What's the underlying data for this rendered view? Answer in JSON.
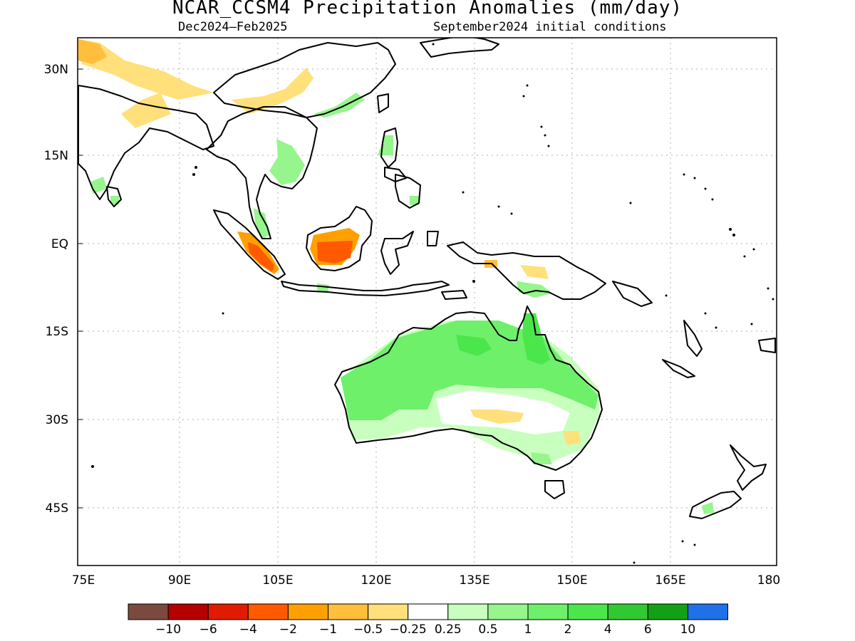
{
  "header": {
    "title": "NCAR_CCSM4 Precipitation Anomalies (mm/day)",
    "period": "Dec2024–Feb2025",
    "init": "September2024 initial conditions"
  },
  "axes": {
    "lat_labels": [
      "30N",
      "15N",
      "EQ",
      "15S",
      "30S",
      "45S"
    ],
    "lon_labels": [
      "75E",
      "90E",
      "105E",
      "120E",
      "135E",
      "150E",
      "165E",
      "180"
    ]
  },
  "legend": {
    "colors": [
      "#7a4a3e",
      "#b50000",
      "#e11b00",
      "#ff5a00",
      "#ffa000",
      "#ffbf3c",
      "#ffe07a",
      "#ffffff",
      "#c8ffbe",
      "#96f58c",
      "#6ef06a",
      "#4be64b",
      "#32c832",
      "#14a014",
      "#2070e8"
    ],
    "labels": [
      "−10",
      "−6",
      "−4",
      "−2",
      "−1",
      "−0.5",
      "−0.25",
      "0.25",
      "0.5",
      "1",
      "2",
      "4",
      "6",
      "10"
    ]
  },
  "regions": {
    "wet_strong": "Cape York / NE Australia",
    "wet": "northern and western Australia",
    "dry_moderate": "central Borneo and western Sumatra",
    "dry": "Himalaya foothills and southern China"
  }
}
